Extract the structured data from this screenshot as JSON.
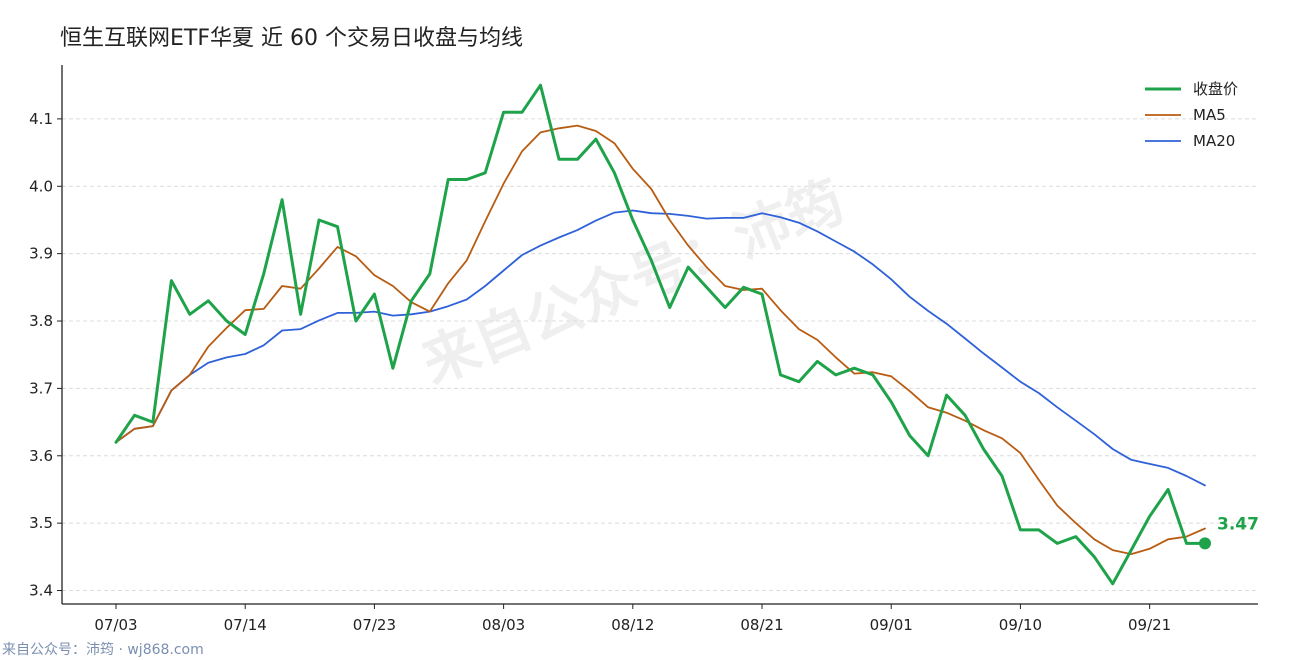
{
  "title": "恒生互联网ETF华夏 近 60 个交易日收盘与均线",
  "watermark": "来自公众号：沛筠",
  "footer": "来自公众号：沛筠 · wj868.com",
  "colors": {
    "close": "#1fa34a",
    "ma5": "#b85c12",
    "ma20": "#2f62d8",
    "grid": "#dcdcdc",
    "axis": "#222222"
  },
  "chart_data": {
    "type": "line",
    "title": "恒生互联网ETF华夏 近 60 个交易日收盘与均线",
    "xlabel": "",
    "ylabel": "",
    "x_ticks": [
      "07/03",
      "07/14",
      "07/23",
      "08/03",
      "08/12",
      "08/21",
      "09/01",
      "09/10",
      "09/21"
    ],
    "x_tick_index": [
      0,
      7,
      14,
      21,
      28,
      35,
      42,
      49,
      56
    ],
    "y_ticks": [
      3.4,
      3.5,
      3.6,
      3.7,
      3.8,
      3.9,
      4.0,
      4.1
    ],
    "ylim": [
      3.38,
      4.18
    ],
    "grid": "horizontal dashed",
    "legend_position": "top-right",
    "series": [
      {
        "name": "收盘价",
        "color": "#1fa34a",
        "values": [
          3.62,
          3.66,
          3.65,
          3.86,
          3.81,
          3.83,
          3.8,
          3.78,
          3.87,
          3.98,
          3.81,
          3.95,
          3.94,
          3.8,
          3.84,
          3.73,
          3.83,
          3.87,
          4.01,
          4.01,
          4.02,
          4.11,
          4.11,
          4.15,
          4.04,
          4.04,
          4.07,
          4.02,
          3.95,
          3.89,
          3.82,
          3.88,
          3.85,
          3.82,
          3.85,
          3.84,
          3.72,
          3.71,
          3.74,
          3.72,
          3.73,
          3.72,
          3.68,
          3.63,
          3.6,
          3.69,
          3.66,
          3.61,
          3.57,
          3.49,
          3.49,
          3.47,
          3.48,
          3.45,
          3.41,
          3.46,
          3.51,
          3.55,
          3.47,
          3.47
        ]
      },
      {
        "name": "MA5",
        "color": "#b85c12",
        "values": [
          3.62,
          3.64,
          3.644,
          3.697,
          3.72,
          3.762,
          3.79,
          3.816,
          3.818,
          3.852,
          3.848,
          3.878,
          3.91,
          3.896,
          3.868,
          3.852,
          3.828,
          3.814,
          3.856,
          3.89,
          3.948,
          4.004,
          4.052,
          4.08,
          4.086,
          4.09,
          4.082,
          4.064,
          4.026,
          3.996,
          3.95,
          3.912,
          3.88,
          3.852,
          3.846,
          3.848,
          3.816,
          3.788,
          3.772,
          3.746,
          3.722,
          3.724,
          3.718,
          3.696,
          3.672,
          3.664,
          3.652,
          3.638,
          3.626,
          3.604,
          3.564,
          3.526,
          3.5,
          3.476,
          3.46,
          3.454,
          3.462,
          3.476,
          3.48,
          3.492
        ]
      },
      {
        "name": "MA20",
        "color": "#2f62d8",
        "values": [
          3.62,
          3.64,
          3.644,
          3.697,
          3.72,
          3.738,
          3.746,
          3.751,
          3.764,
          3.786,
          3.788,
          3.801,
          3.812,
          3.812,
          3.814,
          3.808,
          3.81,
          3.814,
          3.822,
          3.832,
          3.852,
          3.875,
          3.898,
          3.912,
          3.924,
          3.935,
          3.949,
          3.961,
          3.964,
          3.96,
          3.959,
          3.956,
          3.952,
          3.953,
          3.953,
          3.96,
          3.954,
          3.946,
          3.933,
          3.918,
          3.903,
          3.884,
          3.862,
          3.836,
          3.815,
          3.796,
          3.774,
          3.752,
          3.731,
          3.71,
          3.693,
          3.672,
          3.652,
          3.632,
          3.61,
          3.594,
          3.588,
          3.582,
          3.57,
          3.556
        ]
      }
    ],
    "last_value_label": "3.47"
  }
}
